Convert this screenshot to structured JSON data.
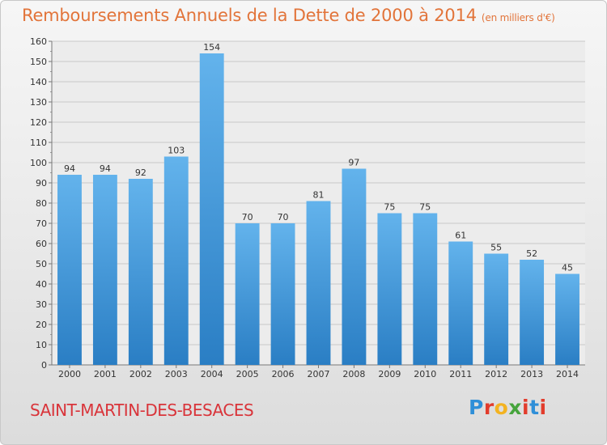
{
  "header": {
    "title": "Remboursements Annuels de la Dette de 2000 à 2014",
    "unit": "(en milliers d'€)"
  },
  "footer": {
    "place": "SAINT-MARTIN-DES-BESACES",
    "logo": "Proxiti",
    "logo_colors": [
      "#2f8fd8",
      "#e23c2c",
      "#f3b321",
      "#46a43c",
      "#e23c2c",
      "#2f8fd8",
      "#e23c2c"
    ]
  },
  "colors": {
    "bar_top": "#63b3ec",
    "bar_bottom": "#2a7ec4",
    "title": "#e2743a",
    "place": "#d9343a",
    "grid": "#c9c9c9",
    "axis_text": "#333333"
  },
  "chart_data": {
    "type": "bar",
    "title": "Remboursements Annuels de la Dette de 2000 à 2014",
    "subtitle": "(en milliers d'€)",
    "xlabel": "",
    "ylabel": "",
    "categories": [
      "2000",
      "2001",
      "2002",
      "2003",
      "2004",
      "2005",
      "2006",
      "2007",
      "2008",
      "2009",
      "2010",
      "2011",
      "2012",
      "2013",
      "2014"
    ],
    "values": [
      94,
      94,
      92,
      103,
      154,
      70,
      70,
      81,
      97,
      75,
      75,
      61,
      55,
      52,
      45
    ],
    "ylim": [
      0,
      160
    ],
    "yticks": [
      0,
      10,
      20,
      30,
      40,
      50,
      60,
      70,
      80,
      90,
      100,
      110,
      120,
      130,
      140,
      150,
      160
    ],
    "grid": true,
    "data_labels": true
  }
}
